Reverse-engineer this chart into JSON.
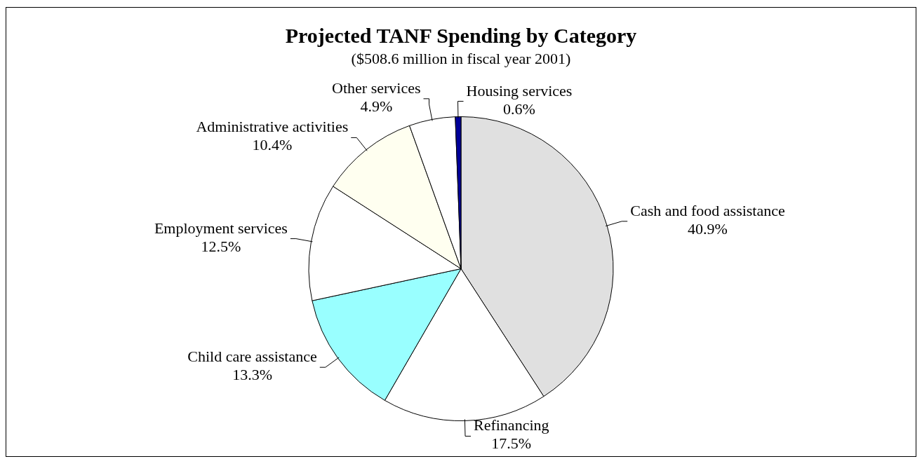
{
  "chart_data": {
    "type": "pie",
    "title": "Projected TANF Spending by Category",
    "subtitle": "($508.6 million in fiscal year 2001)",
    "categories": [
      "Cash and food assistance",
      "Refinancing",
      "Child care assistance",
      "Employment services",
      "Administrative activities",
      "Other services",
      "Housing services"
    ],
    "values": [
      40.9,
      17.5,
      13.3,
      12.5,
      10.4,
      4.9,
      0.6
    ],
    "value_labels": [
      "40.9%",
      "17.5%",
      "13.3%",
      "12.5%",
      "10.4%",
      "4.9%",
      "0.6%"
    ],
    "colors": [
      "#e0e0e0",
      "#ffffff",
      "#99ffff",
      "#ffffff",
      "#fffff0",
      "#ffffff",
      "#000099"
    ],
    "legend": false
  }
}
